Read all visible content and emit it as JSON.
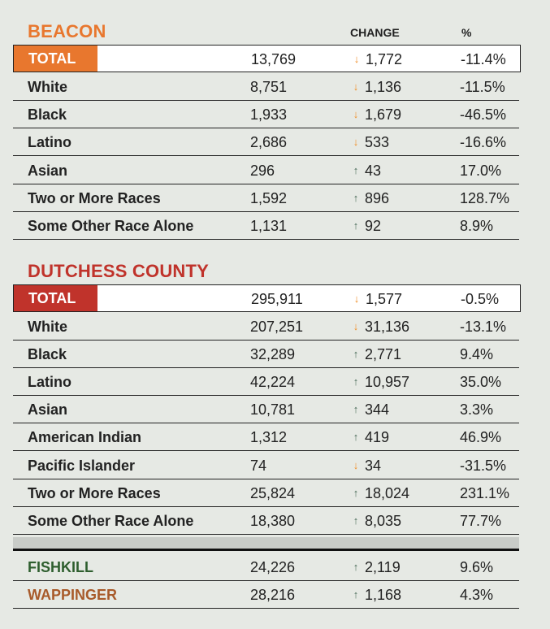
{
  "columns": {
    "change": "CHANGE",
    "pct": "%"
  },
  "colors": {
    "beacon": "#e8772e",
    "dutchess": "#c0332b",
    "fishkill": "#2e5e2e",
    "wappinger": "#a85a2a",
    "arrow_down": "#f0902a",
    "arrow_up": "#4a6b5a"
  },
  "beacon": {
    "title": "BEACON",
    "total": {
      "label": "TOTAL",
      "value": "13,769",
      "change": "1,772",
      "dir": "down",
      "pct": "-11.4%"
    },
    "rows": [
      {
        "name": "White",
        "value": "8,751",
        "change": "1,136",
        "dir": "down",
        "pct": "-11.5%"
      },
      {
        "name": "Black",
        "value": "1,933",
        "change": "1,679",
        "dir": "down",
        "pct": "-46.5%"
      },
      {
        "name": "Latino",
        "value": "2,686",
        "change": "533",
        "dir": "down",
        "pct": "-16.6%"
      },
      {
        "name": "Asian",
        "value": "296",
        "change": "43",
        "dir": "up",
        "pct": "17.0%"
      },
      {
        "name": "Two or More Races",
        "value": "1,592",
        "change": "896",
        "dir": "up",
        "pct": "128.7%"
      },
      {
        "name": "Some Other Race Alone",
        "value": "1,131",
        "change": "92",
        "dir": "up",
        "pct": "8.9%"
      }
    ]
  },
  "dutchess": {
    "title": "DUTCHESS COUNTY",
    "total": {
      "label": "TOTAL",
      "value": "295,911",
      "change": "1,577",
      "dir": "down",
      "pct": "-0.5%"
    },
    "rows": [
      {
        "name": "White",
        "value": "207,251",
        "change": "31,136",
        "dir": "down",
        "pct": "-13.1%"
      },
      {
        "name": "Black",
        "value": "32,289",
        "change": "2,771",
        "dir": "up",
        "pct": "9.4%"
      },
      {
        "name": "Latino",
        "value": "42,224",
        "change": "10,957",
        "dir": "up",
        "pct": "35.0%"
      },
      {
        "name": "Asian",
        "value": "10,781",
        "change": "344",
        "dir": "up",
        "pct": "3.3%"
      },
      {
        "name": "American Indian",
        "value": "1,312",
        "change": "419",
        "dir": "up",
        "pct": "46.9%"
      },
      {
        "name": "Pacific Islander",
        "value": "74",
        "change": "34",
        "dir": "down",
        "pct": "-31.5%"
      },
      {
        "name": "Two or More Races",
        "value": "25,824",
        "change": "18,024",
        "dir": "up",
        "pct": "231.1%"
      },
      {
        "name": "Some Other Race Alone",
        "value": "18,380",
        "change": "8,035",
        "dir": "up",
        "pct": "77.7%"
      }
    ]
  },
  "towns": [
    {
      "name": "FISHKILL",
      "color_key": "fishkill",
      "value": "24,226",
      "change": "2,119",
      "dir": "up",
      "pct": "9.6%"
    },
    {
      "name": "WAPPINGER",
      "color_key": "wappinger",
      "value": "28,216",
      "change": "1,168",
      "dir": "up",
      "pct": "4.3%"
    }
  ]
}
